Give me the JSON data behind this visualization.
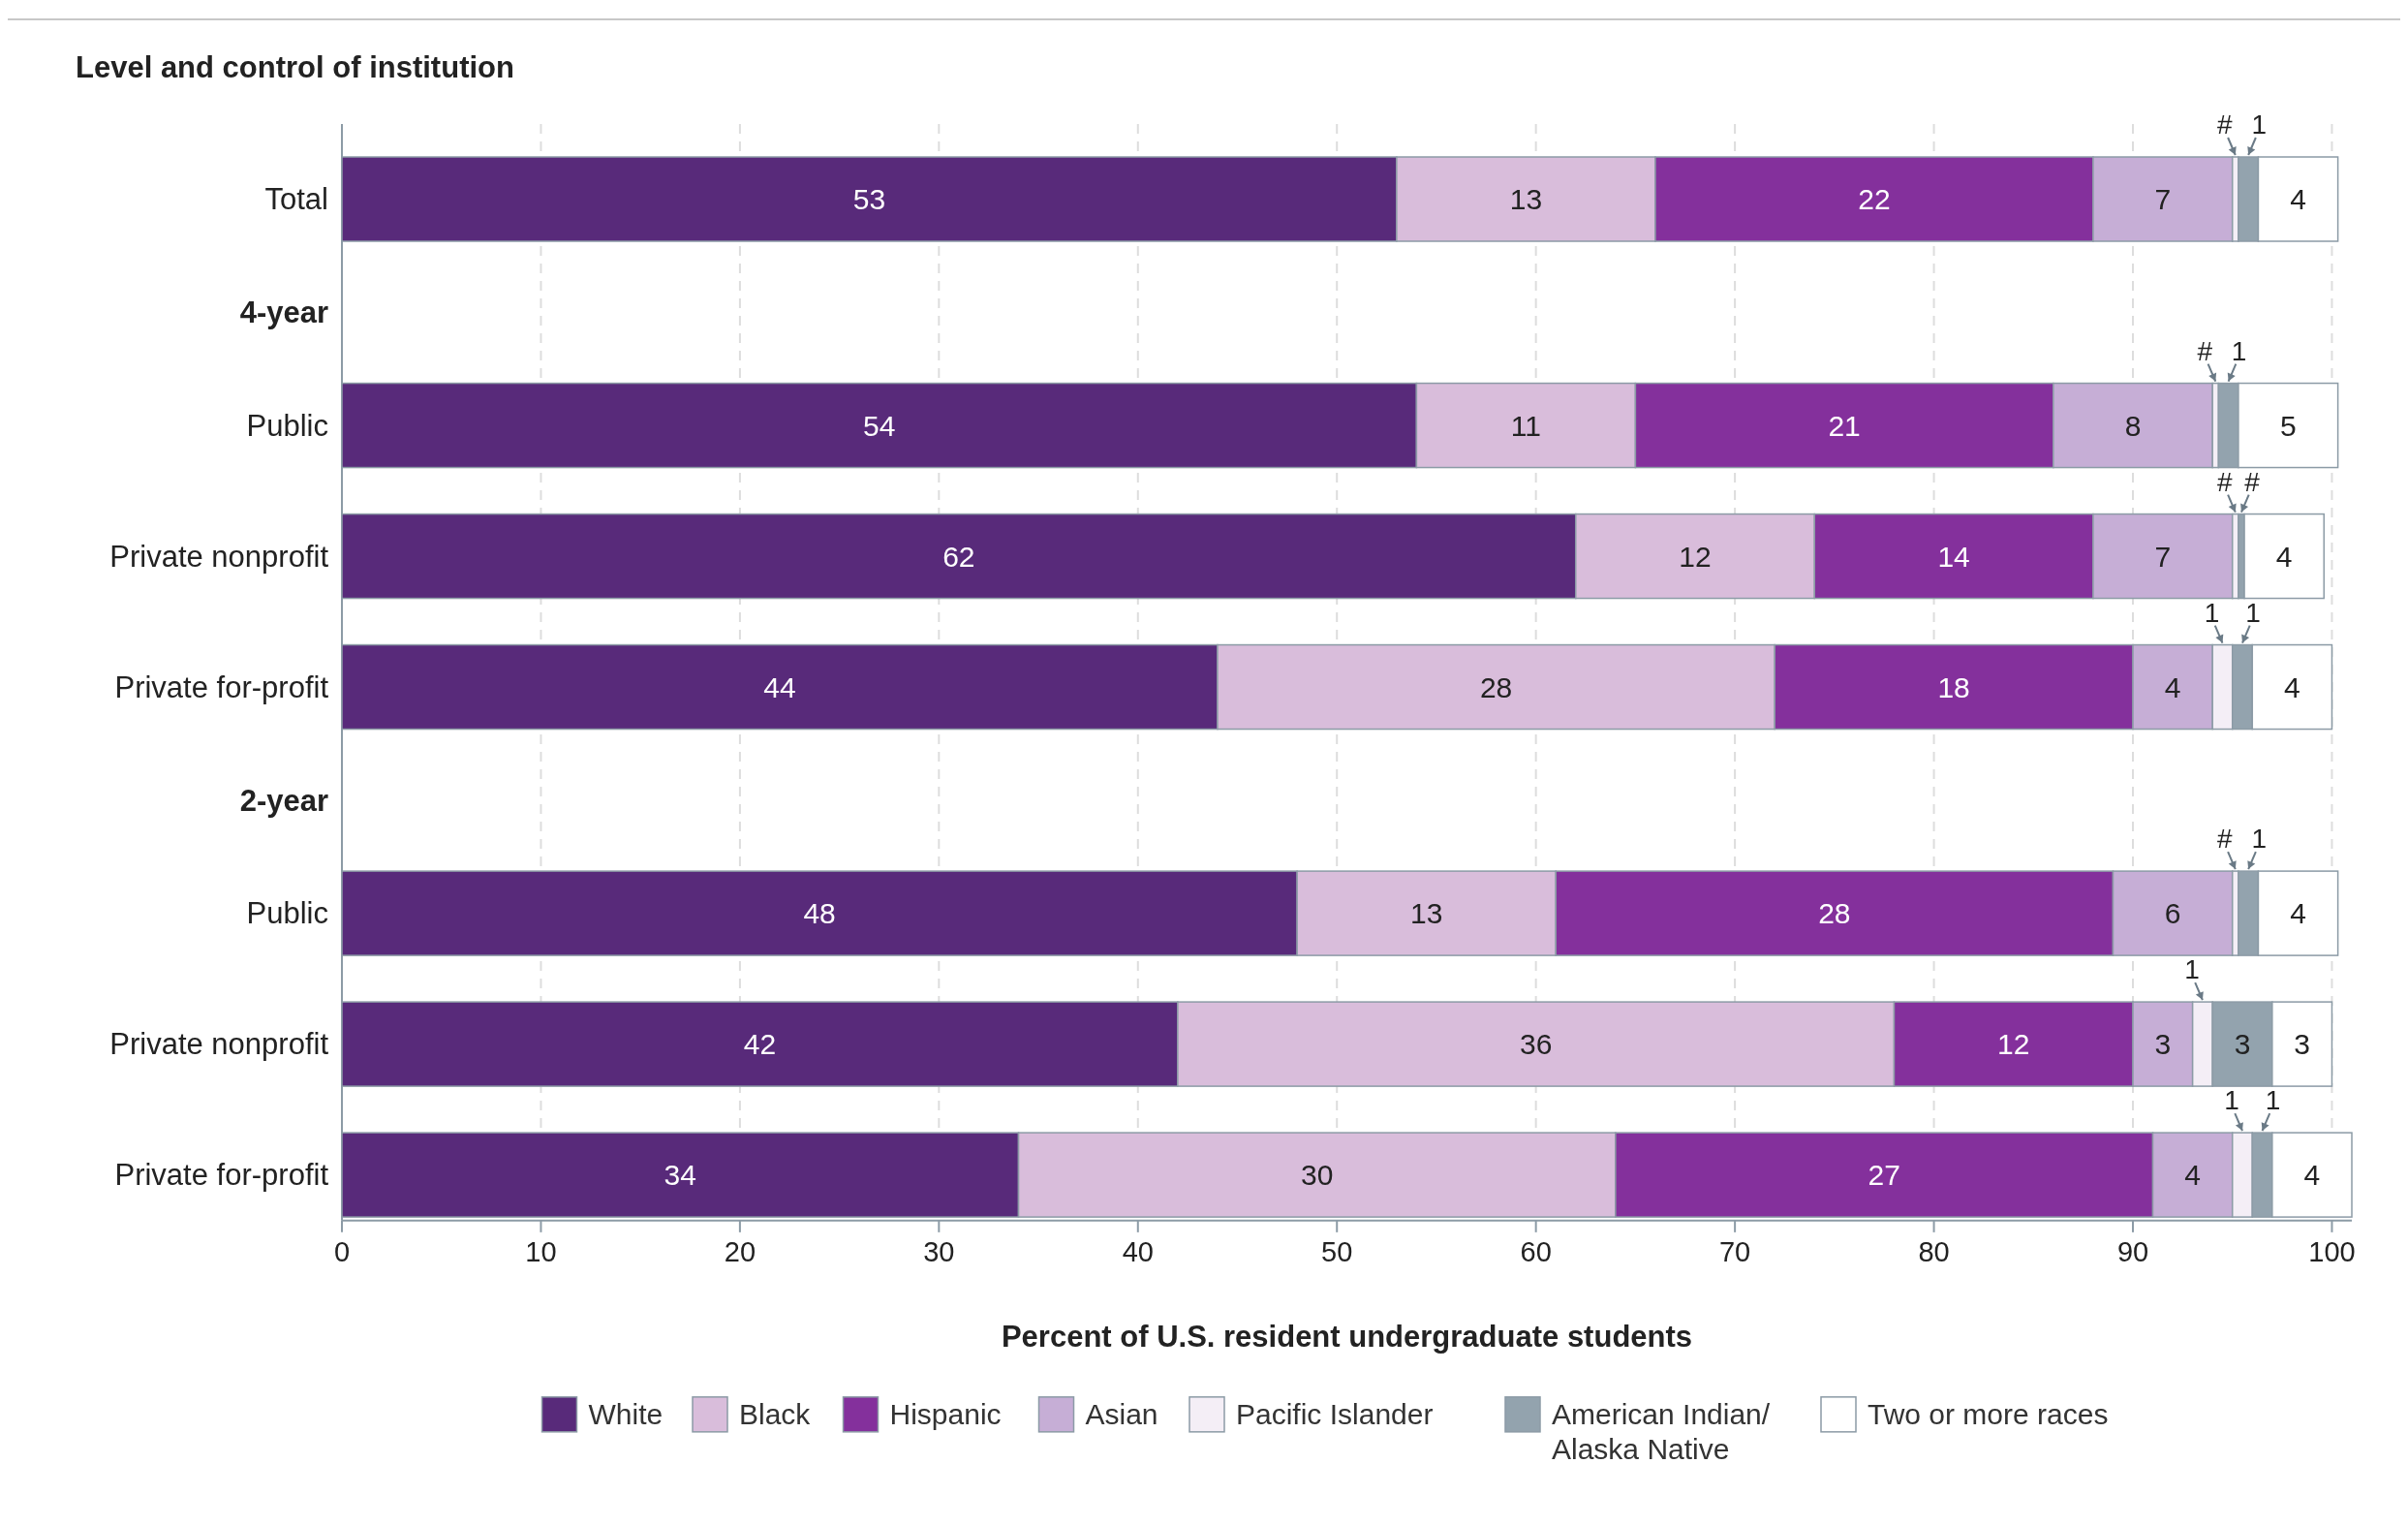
{
  "chart_data": {
    "type": "bar",
    "orientation": "horizontal",
    "stacked": true,
    "ylabel": "Level and control of institution",
    "xlabel": "Percent of U.S. resident undergraduate students",
    "categories": [
      "Total",
      "4-year",
      "Public",
      "Private nonprofit",
      "Private for-profit",
      "2-year",
      "Public",
      "Private nonprofit",
      "Private for-profit"
    ],
    "xlim": [
      0,
      101
    ],
    "xticks": [
      0,
      10,
      20,
      30,
      40,
      50,
      60,
      70,
      80,
      90,
      100
    ],
    "grid": "x",
    "legend": "bottom",
    "series": [
      {
        "name": "White",
        "color": "#582a7a",
        "values": [
          53,
          null,
          54,
          62,
          44,
          null,
          48,
          42,
          34
        ],
        "value_labels": [
          "53",
          null,
          "54",
          "62",
          "44",
          null,
          "48",
          "42",
          "34"
        ]
      },
      {
        "name": "Black",
        "color": "#d9bddb",
        "values": [
          13,
          null,
          11,
          12,
          28,
          null,
          13,
          36,
          30
        ],
        "value_labels": [
          "13",
          null,
          "11",
          "12",
          "28",
          null,
          "13",
          "36",
          "30"
        ]
      },
      {
        "name": "Hispanic",
        "color": "#84309c",
        "values": [
          22,
          null,
          21,
          14,
          18,
          null,
          28,
          12,
          27
        ],
        "value_labels": [
          "22",
          null,
          "21",
          "14",
          "18",
          null,
          "28",
          "12",
          "27"
        ]
      },
      {
        "name": "Asian",
        "color": "#c6aed6",
        "values": [
          7,
          null,
          8,
          7,
          4,
          null,
          6,
          3,
          4
        ],
        "value_labels": [
          "7",
          null,
          "8",
          "7",
          "4",
          null,
          "6",
          "3",
          "4"
        ]
      },
      {
        "name": "Pacific Islander",
        "color": "#f4eef6",
        "values": [
          0.3,
          null,
          0.3,
          0.3,
          1,
          null,
          0.3,
          1,
          1
        ],
        "value_labels": [
          "#",
          null,
          "#",
          "#",
          "1",
          null,
          "#",
          "1",
          "1"
        ]
      },
      {
        "name": "American Indian/ Alaska Native",
        "color": "#93a3ae",
        "values": [
          1,
          null,
          1,
          0.3,
          1,
          null,
          1,
          3,
          1
        ],
        "value_labels": [
          "1",
          null,
          "1",
          "#",
          "1",
          null,
          "1",
          "3",
          "1"
        ]
      },
      {
        "name": "Two or more races",
        "color": "#ffffff",
        "values": [
          4,
          null,
          5,
          4,
          4,
          null,
          4,
          3,
          4
        ],
        "value_labels": [
          "4",
          null,
          "5",
          "4",
          "4",
          null,
          "4",
          "3",
          "4"
        ]
      }
    ]
  }
}
